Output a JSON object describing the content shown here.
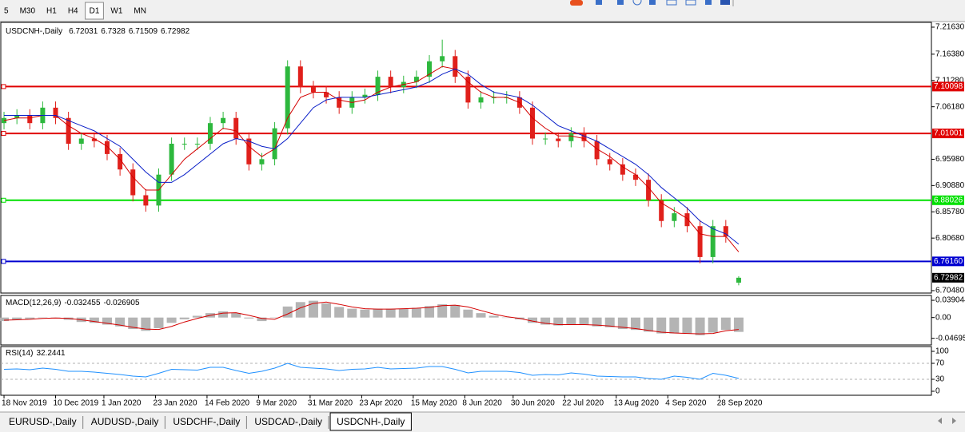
{
  "toolbar": {
    "timeframes": [
      {
        "label": "5"
      },
      {
        "label": "M30"
      },
      {
        "label": "H1"
      },
      {
        "label": "H4"
      },
      {
        "label": "D1",
        "selected": true
      },
      {
        "label": "W1"
      },
      {
        "label": "MN"
      }
    ]
  },
  "chart_data": [
    {
      "type": "candlestick",
      "title": "USDCNH-,Daily",
      "up_color": "#2db83d",
      "down_color": "#e0201b",
      "x": [
        0,
        4,
        8,
        12,
        16,
        20,
        24,
        28,
        32,
        36,
        40,
        44,
        48,
        52,
        56,
        60,
        64,
        68,
        72,
        76,
        80,
        84,
        88,
        92,
        96,
        100,
        104,
        108,
        112,
        116,
        120,
        124,
        128,
        132,
        136,
        140,
        144,
        148,
        152,
        156,
        160,
        164,
        168,
        172,
        176,
        180,
        184,
        188,
        192,
        196,
        200,
        204,
        208,
        212,
        216,
        220,
        224,
        228
      ],
      "open": [
        7.03,
        7.04,
        7.045,
        7.03,
        7.06,
        7.04,
        6.99,
        7.0,
        6.995,
        6.97,
        6.94,
        6.89,
        6.87,
        6.93,
        6.99,
        6.99,
        6.99,
        7.03,
        7.04,
        7.0,
        6.95,
        6.96,
        7.02,
        7.14,
        7.1,
        7.09,
        7.08,
        7.06,
        7.08,
        7.085,
        7.12,
        7.1,
        7.11,
        7.12,
        7.15,
        7.16,
        7.12,
        7.07,
        7.08,
        7.08,
        7.08,
        7.06,
        7.0,
        7.0,
        6.995,
        7.01,
        6.995,
        6.96,
        6.95,
        6.93,
        6.92,
        6.88,
        6.84,
        6.855,
        6.83,
        6.77,
        6.83,
        6.72031
      ],
      "high": [
        7.052,
        7.057,
        7.057,
        7.072,
        7.072,
        7.052,
        7.012,
        7.012,
        7.007,
        6.982,
        6.952,
        6.902,
        6.942,
        7.002,
        7.002,
        7.002,
        7.042,
        7.052,
        7.052,
        7.012,
        6.972,
        7.032,
        7.152,
        7.152,
        7.112,
        7.102,
        7.092,
        7.092,
        7.097,
        7.132,
        7.132,
        7.122,
        7.132,
        7.162,
        7.192,
        7.172,
        7.132,
        7.092,
        7.092,
        7.092,
        7.092,
        7.072,
        7.012,
        7.012,
        7.022,
        7.022,
        7.007,
        6.972,
        6.962,
        6.942,
        6.932,
        6.892,
        6.867,
        6.867,
        6.842,
        6.842,
        6.842,
        6.7328
      ],
      "low": [
        7.018,
        7.028,
        7.018,
        7.018,
        7.028,
        6.978,
        6.978,
        6.983,
        6.958,
        6.928,
        6.878,
        6.858,
        6.858,
        6.918,
        6.978,
        6.978,
        6.978,
        7.018,
        6.988,
        6.938,
        6.938,
        6.948,
        7.008,
        7.088,
        7.078,
        7.068,
        7.048,
        7.048,
        7.068,
        7.073,
        7.088,
        7.088,
        7.098,
        7.108,
        7.138,
        7.108,
        7.058,
        7.058,
        7.068,
        7.068,
        7.048,
        6.988,
        6.988,
        6.983,
        6.983,
        6.983,
        6.948,
        6.938,
        6.918,
        6.908,
        6.868,
        6.828,
        6.828,
        6.818,
        6.758,
        6.758,
        6.798,
        6.71509
      ],
      "close": [
        7.04,
        7.045,
        7.03,
        7.06,
        7.04,
        6.99,
        7.0,
        6.995,
        6.97,
        6.94,
        6.89,
        6.87,
        6.93,
        6.99,
        6.99,
        6.99,
        7.03,
        7.04,
        7.0,
        6.95,
        6.96,
        7.02,
        7.14,
        7.1,
        7.09,
        7.08,
        7.06,
        7.08,
        7.085,
        7.12,
        7.1,
        7.11,
        7.12,
        7.15,
        7.16,
        7.12,
        7.07,
        7.08,
        7.08,
        7.08,
        7.06,
        7.0,
        7.0,
        6.995,
        7.01,
        6.995,
        6.96,
        6.95,
        6.93,
        6.92,
        6.88,
        6.84,
        6.855,
        6.83,
        6.77,
        6.83,
        6.81,
        6.72982
      ],
      "series": [
        {
          "color": "#d40000",
          "values": [
            7.035,
            7.04,
            7.04,
            7.045,
            7.045,
            7.025,
            7.01,
            7.0,
            6.985,
            6.96,
            6.925,
            6.9,
            6.9,
            6.93,
            6.96,
            6.98,
            7.0,
            7.02,
            7.015,
            6.985,
            6.965,
            6.98,
            7.04,
            7.08,
            7.09,
            7.09,
            7.075,
            7.07,
            7.075,
            7.09,
            7.1,
            7.105,
            7.11,
            7.125,
            7.14,
            7.135,
            7.11,
            7.09,
            7.08,
            7.08,
            7.07,
            7.04,
            7.02,
            7.005,
            7.005,
            7.0,
            6.98,
            6.965,
            6.945,
            6.93,
            6.905,
            6.875,
            6.86,
            6.845,
            6.815,
            6.81,
            6.81,
            6.78
          ]
        },
        {
          "color": "#0a1fc8",
          "values": [
            7.045,
            7.045,
            7.045,
            7.045,
            7.045,
            7.035,
            7.025,
            7.015,
            7.0,
            6.985,
            6.96,
            6.935,
            6.915,
            6.915,
            6.93,
            6.95,
            6.97,
            6.99,
            7.0,
            6.995,
            6.985,
            6.98,
            7.0,
            7.03,
            7.06,
            7.075,
            7.08,
            7.08,
            7.08,
            7.085,
            7.09,
            7.095,
            7.1,
            7.11,
            7.125,
            7.135,
            7.125,
            7.105,
            7.09,
            7.085,
            7.08,
            7.065,
            7.045,
            7.025,
            7.015,
            7.005,
            6.995,
            6.98,
            6.965,
            6.95,
            6.93,
            6.905,
            6.885,
            6.865,
            6.84,
            6.825,
            6.815,
            6.795
          ]
        }
      ],
      "levels": [
        {
          "value": 7.10098,
          "color": "#e00000"
        },
        {
          "value": 7.01001,
          "color": "#e00000"
        },
        {
          "value": 6.88026,
          "color": "#00e000"
        },
        {
          "value": 6.7616,
          "label": "6.76160",
          "color": "#0000d0"
        }
      ],
      "xlim": [
        -1,
        230
      ],
      "xticks": [
        {
          "value": 0,
          "label": "18 Nov 2019"
        },
        {
          "value": 16,
          "label": "10 Dec 2019"
        },
        {
          "value": 31,
          "label": "1 Jan 2020"
        },
        {
          "value": 47,
          "label": "23 Jan 2020"
        },
        {
          "value": 63,
          "label": "14 Feb 2020"
        },
        {
          "value": 79,
          "label": "9 Mar 2020"
        },
        {
          "value": 95,
          "label": "31 Mar 2020"
        },
        {
          "value": 111,
          "label": "23 Apr 2020"
        },
        {
          "value": 127,
          "label": "15 May 2020"
        },
        {
          "value": 143,
          "label": "8 Jun 2020"
        },
        {
          "value": 158,
          "label": "30 Jun 2020"
        },
        {
          "value": 174,
          "label": "22 Jul 2020"
        },
        {
          "value": 190,
          "label": "13 Aug 2020"
        },
        {
          "value": 206,
          "label": "4 Sep 2020"
        },
        {
          "value": 222,
          "label": "28 Sep 2020"
        }
      ],
      "ylim": [
        6.7001,
        7.2256
      ],
      "yticks": [
        {
          "value": 7.2163,
          "label": "7.21630"
        },
        {
          "value": 7.1638,
          "label": "7.16380"
        },
        {
          "value": 7.1128,
          "label": "7.11280"
        },
        {
          "value": 7.0618,
          "label": "7.06180"
        },
        {
          "value": 6.9598,
          "label": "6.95980"
        },
        {
          "value": 6.9088,
          "label": "6.90880"
        },
        {
          "value": 6.8578,
          "label": "6.85780"
        },
        {
          "value": 6.8068,
          "label": "6.80680"
        },
        {
          "value": 6.7048,
          "label": "6.70480"
        }
      ]
    },
    {
      "type": "combo",
      "title": "MACD(12,26,9)",
      "series": [
        {
          "type": "bar",
          "color": "#b4b4b4",
          "values": [
            -0.008,
            -0.005,
            -0.003,
            0.0,
            0.0,
            -0.005,
            -0.01,
            -0.012,
            -0.016,
            -0.02,
            -0.026,
            -0.03,
            -0.024,
            -0.012,
            -0.004,
            0.004,
            0.01,
            0.014,
            0.01,
            -0.002,
            -0.008,
            0.0,
            0.025,
            0.035,
            0.038,
            0.032,
            0.024,
            0.02,
            0.018,
            0.02,
            0.02,
            0.02,
            0.022,
            0.026,
            0.03,
            0.028,
            0.018,
            0.01,
            0.004,
            0.0,
            -0.004,
            -0.012,
            -0.016,
            -0.018,
            -0.016,
            -0.016,
            -0.02,
            -0.022,
            -0.026,
            -0.028,
            -0.032,
            -0.036,
            -0.036,
            -0.036,
            -0.04,
            -0.034,
            -0.028,
            -0.032455
          ]
        },
        {
          "type": "line",
          "color": "#d40000",
          "values": [
            -0.006,
            -0.005,
            -0.004,
            -0.002,
            -0.001,
            -0.002,
            -0.005,
            -0.009,
            -0.013,
            -0.017,
            -0.022,
            -0.026,
            -0.027,
            -0.02,
            -0.01,
            -0.002,
            0.005,
            0.01,
            0.011,
            0.005,
            -0.002,
            -0.004,
            0.008,
            0.022,
            0.032,
            0.035,
            0.03,
            0.024,
            0.02,
            0.019,
            0.019,
            0.02,
            0.021,
            0.023,
            0.027,
            0.028,
            0.024,
            0.016,
            0.008,
            0.002,
            -0.002,
            -0.008,
            -0.013,
            -0.016,
            -0.016,
            -0.016,
            -0.017,
            -0.019,
            -0.022,
            -0.025,
            -0.029,
            -0.033,
            -0.035,
            -0.036,
            -0.037,
            -0.036,
            -0.03,
            -0.026905
          ]
        }
      ],
      "ylim": [
        -0.062,
        0.05
      ],
      "yticks": [
        0.039044,
        {
          "value": 0,
          "label": "0.00"
        },
        -0.046959
      ]
    },
    {
      "type": "line",
      "title": "RSI(14)",
      "series": [
        {
          "color": "#1e90ff",
          "values": [
            55,
            56,
            54,
            58,
            55,
            50,
            50,
            48,
            45,
            42,
            38,
            36,
            45,
            55,
            54,
            53,
            60,
            60,
            52,
            45,
            50,
            58,
            70,
            60,
            58,
            56,
            52,
            55,
            56,
            60,
            56,
            57,
            58,
            62,
            62,
            55,
            46,
            50,
            50,
            50,
            47,
            40,
            42,
            41,
            46,
            43,
            38,
            37,
            36,
            36,
            32,
            30,
            38,
            35,
            30,
            45,
            40,
            32.2441
          ]
        }
      ],
      "levels": [
        {
          "value": 70,
          "color": "#b0b0b0"
        },
        {
          "value": 30,
          "color": "#b0b0b0"
        }
      ],
      "ylim": [
        -10,
        112
      ],
      "yticks": [
        100,
        70,
        30,
        0
      ]
    }
  ],
  "tabs": [
    {
      "label": "EURUSD-,Daily"
    },
    {
      "label": "AUDUSD-,Daily"
    },
    {
      "label": "USDCHF-,Daily"
    },
    {
      "label": "USDCAD-,Daily"
    },
    {
      "label": "USDCNH-,Daily",
      "selected": true
    }
  ]
}
